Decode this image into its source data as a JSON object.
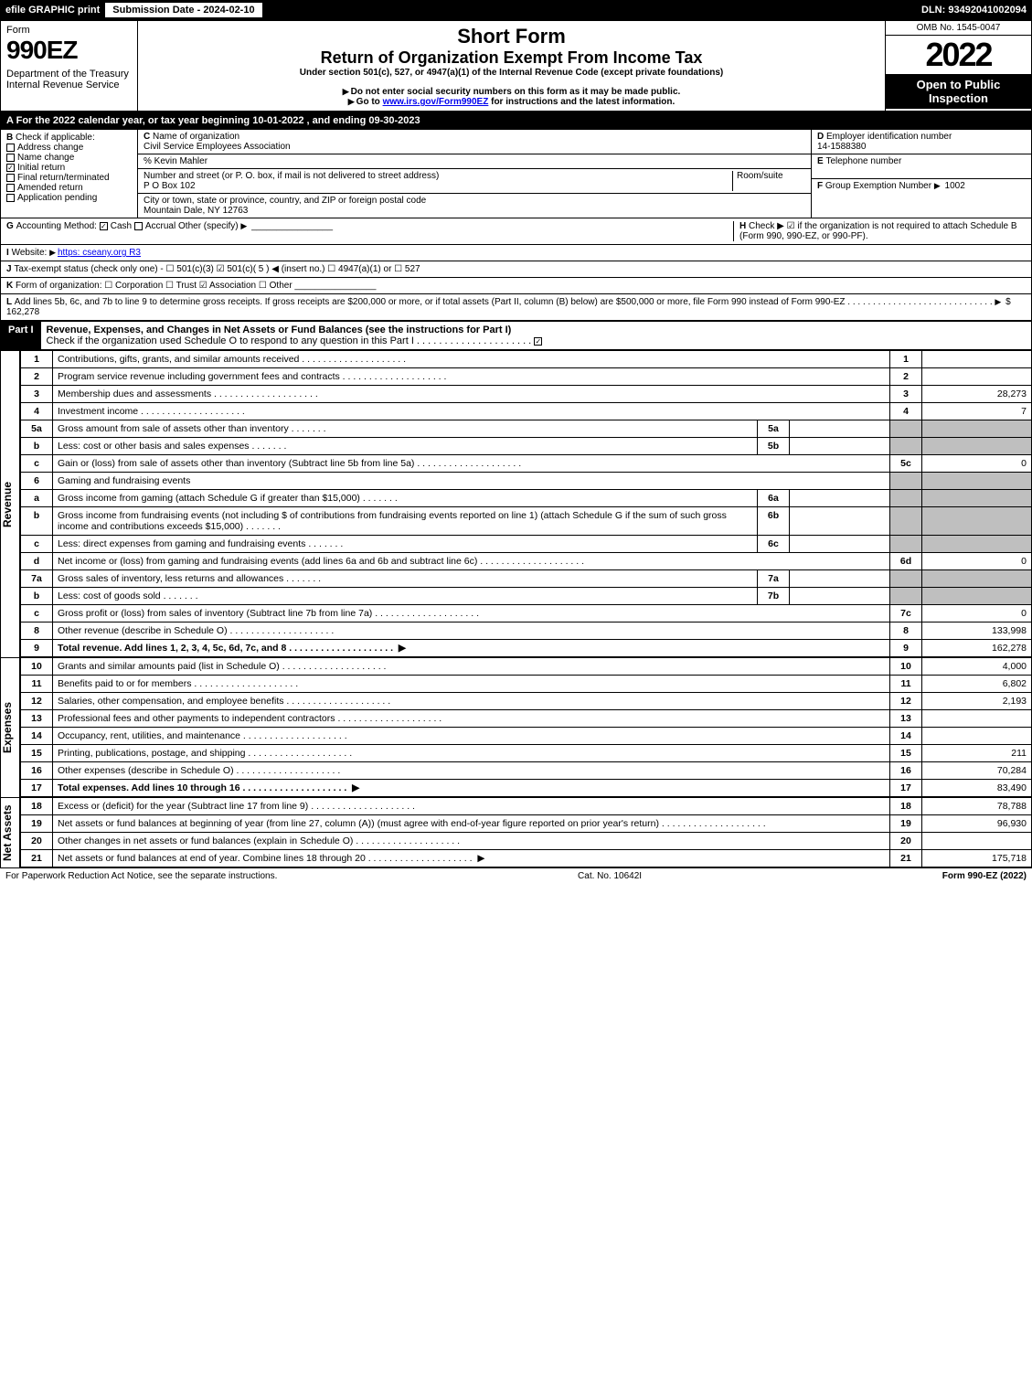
{
  "topbar": {
    "efile": "efile GRAPHIC print",
    "sub_label": "Submission Date - 2024-02-10",
    "dln": "DLN: 93492041002094"
  },
  "header": {
    "form_word": "Form",
    "form_no": "990EZ",
    "dept": "Department of the Treasury\nInternal Revenue Service",
    "title1": "Short Form",
    "title2": "Return of Organization Exempt From Income Tax",
    "subtitle": "Under section 501(c), 527, or 4947(a)(1) of the Internal Revenue Code (except private foundations)",
    "warn1": "Do not enter social security numbers on this form as it may be made public.",
    "warn2": "Go to www.irs.gov/Form990EZ for instructions and the latest information.",
    "omb": "OMB No. 1545-0047",
    "year": "2022",
    "open": "Open to Public Inspection"
  },
  "A": "For the 2022 calendar year, or tax year beginning 10-01-2022 , and ending 09-30-2023",
  "B": {
    "label": "Check if applicable:",
    "opts": [
      "Address change",
      "Name change",
      "Initial return",
      "Final return/terminated",
      "Amended return",
      "Application pending"
    ],
    "checked": [
      false,
      false,
      true,
      false,
      false,
      false
    ]
  },
  "C": {
    "name_lbl": "Name of organization",
    "name": "Civil Service Employees Association",
    "care": "% Kevin Mahler",
    "addr_lbl": "Number and street (or P. O. box, if mail is not delivered to street address)",
    "room_lbl": "Room/suite",
    "addr": "P O Box 102",
    "city_lbl": "City or town, state or province, country, and ZIP or foreign postal code",
    "city": "Mountain Dale, NY  12763"
  },
  "D": {
    "lbl": "Employer identification number",
    "val": "14-1588380"
  },
  "E": {
    "lbl": "Telephone number",
    "val": ""
  },
  "F": {
    "lbl": "Group Exemption Number",
    "val": "1002"
  },
  "G": {
    "lbl": "Accounting Method:",
    "cash": "Cash",
    "accrual": "Accrual",
    "other": "Other (specify)",
    "checked": "cash"
  },
  "H": "Check ▶ ☑ if the organization is not required to attach Schedule B (Form 990, 990-EZ, or 990-PF).",
  "I": {
    "lbl": "Website:",
    "val": "https: cseany.org R3"
  },
  "J": "Tax-exempt status (check only one) - ☐ 501(c)(3) ☑ 501(c)( 5 ) ◀ (insert no.) ☐ 4947(a)(1) or ☐ 527",
  "K": "Form of organization:  ☐ Corporation  ☐ Trust  ☑ Association  ☐ Other",
  "L": {
    "text": "Add lines 5b, 6c, and 7b to line 9 to determine gross receipts. If gross receipts are $200,000 or more, or if total assets (Part II, column (B) below) are $500,000 or more, file Form 990 instead of Form 990-EZ",
    "val": "$ 162,278"
  },
  "part1": {
    "label": "Part I",
    "title": "Revenue, Expenses, and Changes in Net Assets or Fund Balances (see the instructions for Part I)",
    "check": "Check if the organization used Schedule O to respond to any question in this Part I"
  },
  "revenue": [
    {
      "n": "1",
      "d": "Contributions, gifts, grants, and similar amounts received",
      "r": "1",
      "v": ""
    },
    {
      "n": "2",
      "d": "Program service revenue including government fees and contracts",
      "r": "2",
      "v": ""
    },
    {
      "n": "3",
      "d": "Membership dues and assessments",
      "r": "3",
      "v": "28,273"
    },
    {
      "n": "4",
      "d": "Investment income",
      "r": "4",
      "v": "7"
    },
    {
      "n": "5a",
      "d": "Gross amount from sale of assets other than inventory",
      "sub": "5a",
      "sv": ""
    },
    {
      "n": "b",
      "d": "Less: cost or other basis and sales expenses",
      "sub": "5b",
      "sv": ""
    },
    {
      "n": "c",
      "d": "Gain or (loss) from sale of assets other than inventory (Subtract line 5b from line 5a)",
      "r": "5c",
      "v": "0"
    },
    {
      "n": "6",
      "d": "Gaming and fundraising events",
      "grey": true
    },
    {
      "n": "a",
      "d": "Gross income from gaming (attach Schedule G if greater than $15,000)",
      "sub": "6a",
      "sv": ""
    },
    {
      "n": "b",
      "d": "Gross income from fundraising events (not including $                          of contributions from fundraising events reported on line 1) (attach Schedule G if the sum of such gross income and contributions exceeds $15,000)",
      "sub": "6b",
      "sv": ""
    },
    {
      "n": "c",
      "d": "Less: direct expenses from gaming and fundraising events",
      "sub": "6c",
      "sv": ""
    },
    {
      "n": "d",
      "d": "Net income or (loss) from gaming and fundraising events (add lines 6a and 6b and subtract line 6c)",
      "r": "6d",
      "v": "0"
    },
    {
      "n": "7a",
      "d": "Gross sales of inventory, less returns and allowances",
      "sub": "7a",
      "sv": ""
    },
    {
      "n": "b",
      "d": "Less: cost of goods sold",
      "sub": "7b",
      "sv": ""
    },
    {
      "n": "c",
      "d": "Gross profit or (loss) from sales of inventory (Subtract line 7b from line 7a)",
      "r": "7c",
      "v": "0"
    },
    {
      "n": "8",
      "d": "Other revenue (describe in Schedule O)",
      "r": "8",
      "v": "133,998"
    },
    {
      "n": "9",
      "d": "Total revenue. Add lines 1, 2, 3, 4, 5c, 6d, 7c, and 8",
      "r": "9",
      "v": "162,278",
      "bold": true,
      "arrow": true
    }
  ],
  "expenses": [
    {
      "n": "10",
      "d": "Grants and similar amounts paid (list in Schedule O)",
      "r": "10",
      "v": "4,000"
    },
    {
      "n": "11",
      "d": "Benefits paid to or for members",
      "r": "11",
      "v": "6,802"
    },
    {
      "n": "12",
      "d": "Salaries, other compensation, and employee benefits",
      "r": "12",
      "v": "2,193"
    },
    {
      "n": "13",
      "d": "Professional fees and other payments to independent contractors",
      "r": "13",
      "v": ""
    },
    {
      "n": "14",
      "d": "Occupancy, rent, utilities, and maintenance",
      "r": "14",
      "v": ""
    },
    {
      "n": "15",
      "d": "Printing, publications, postage, and shipping",
      "r": "15",
      "v": "211"
    },
    {
      "n": "16",
      "d": "Other expenses (describe in Schedule O)",
      "r": "16",
      "v": "70,284"
    },
    {
      "n": "17",
      "d": "Total expenses. Add lines 10 through 16",
      "r": "17",
      "v": "83,490",
      "bold": true,
      "arrow": true
    }
  ],
  "netassets": [
    {
      "n": "18",
      "d": "Excess or (deficit) for the year (Subtract line 17 from line 9)",
      "r": "18",
      "v": "78,788"
    },
    {
      "n": "19",
      "d": "Net assets or fund balances at beginning of year (from line 27, column (A)) (must agree with end-of-year figure reported on prior year's return)",
      "r": "19",
      "v": "96,930"
    },
    {
      "n": "20",
      "d": "Other changes in net assets or fund balances (explain in Schedule O)",
      "r": "20",
      "v": ""
    },
    {
      "n": "21",
      "d": "Net assets or fund balances at end of year. Combine lines 18 through 20",
      "r": "21",
      "v": "175,718",
      "arrow": true
    }
  ],
  "side_labels": {
    "rev": "Revenue",
    "exp": "Expenses",
    "na": "Net Assets"
  },
  "footer": {
    "l": "For Paperwork Reduction Act Notice, see the separate instructions.",
    "m": "Cat. No. 10642I",
    "r": "Form 990-EZ (2022)"
  }
}
